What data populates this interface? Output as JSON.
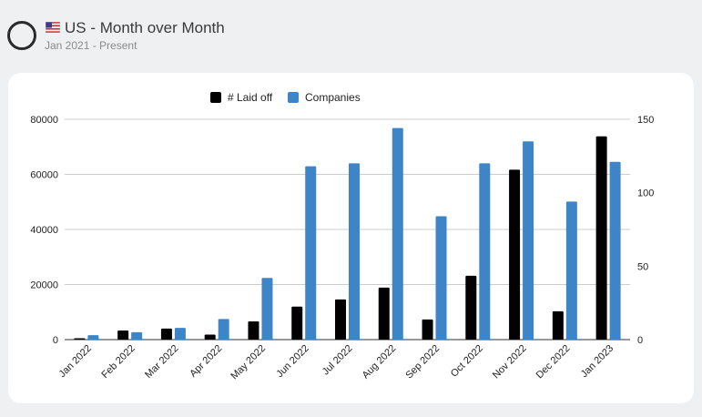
{
  "header": {
    "title": "US - Month over Month",
    "subtitle": "Jan 2021 - Present",
    "flag_icon": "us-flag-icon",
    "status_icon": "ring-icon"
  },
  "colors": {
    "laid_off": "#000000",
    "companies": "#3d85c6",
    "grid": "#cccccc",
    "card_bg": "#ffffff",
    "page_bg": "#eff0f2"
  },
  "chart_data": {
    "type": "bar",
    "legend": {
      "position": "top"
    },
    "grid": true,
    "categories": [
      "Jan 2022",
      "Feb 2022",
      "Mar 2022",
      "Apr 2022",
      "May 2022",
      "Jun 2022",
      "Jul 2022",
      "Aug 2022",
      "Sep 2022",
      "Oct 2022",
      "Nov 2022",
      "Dec 2022",
      "Jan 2023"
    ],
    "series": [
      {
        "name": "# Laid off",
        "axis": "left",
        "values": [
          500,
          3300,
          4000,
          1800,
          6600,
          12000,
          14600,
          18900,
          7300,
          23200,
          61700,
          10300,
          73800
        ]
      },
      {
        "name": "Companies",
        "axis": "right",
        "values": [
          3,
          5,
          8,
          14,
          42,
          118,
          120,
          144,
          84,
          120,
          135,
          94,
          121
        ]
      }
    ],
    "y_left": {
      "ylim": [
        0,
        80000
      ],
      "ticks": [
        "0",
        "20000",
        "40000",
        "60000",
        "80000"
      ],
      "tick_values": [
        0,
        20000,
        40000,
        60000,
        80000
      ]
    },
    "y_right": {
      "ylim": [
        0,
        150
      ],
      "ticks": [
        "0",
        "50",
        "100",
        "150"
      ],
      "tick_values": [
        0,
        50,
        100,
        150
      ]
    }
  }
}
